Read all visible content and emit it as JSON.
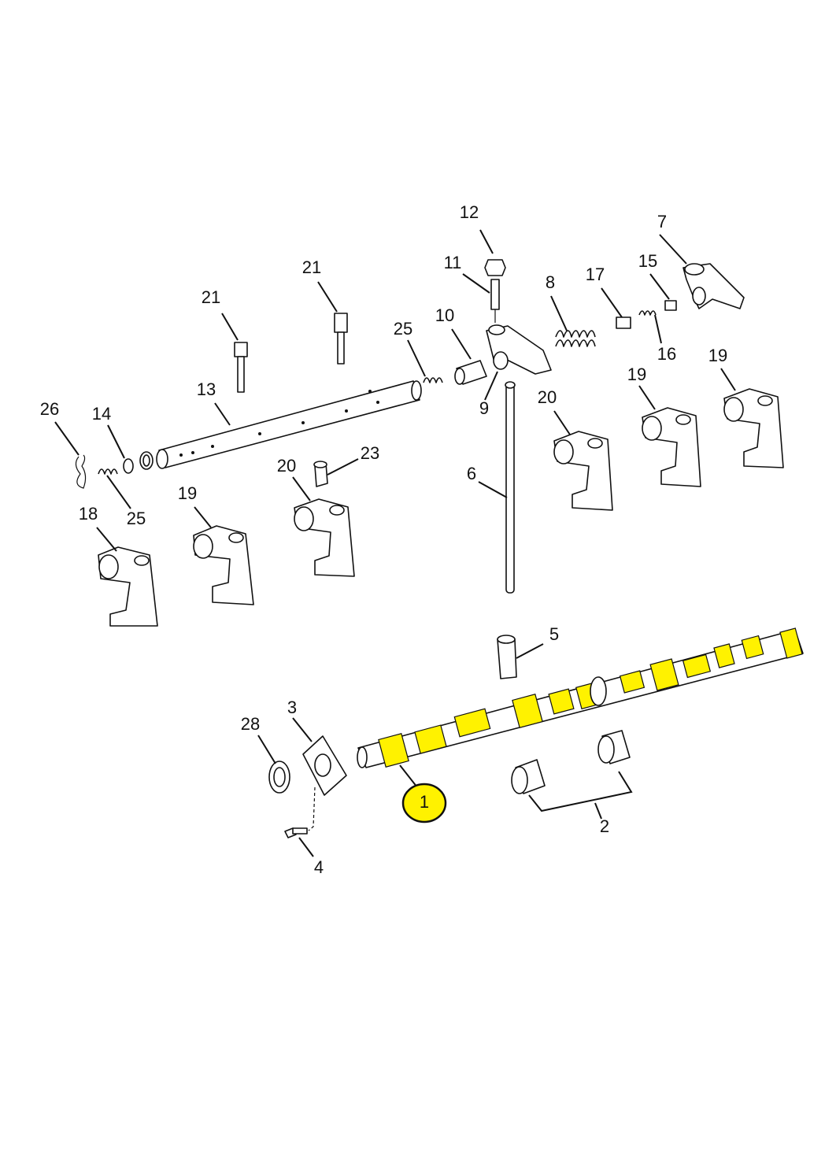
{
  "colors": {
    "highlight": "#fff200",
    "line": "#111111",
    "background": "#ffffff"
  },
  "callouts": {
    "c1": "1",
    "c2": "2",
    "c3": "3",
    "c4": "4",
    "c5": "5",
    "c6": "6",
    "c7": "7",
    "c8": "8",
    "c9": "9",
    "c10": "10",
    "c11": "11",
    "c12": "12",
    "c13": "13",
    "c14": "14",
    "c15": "15",
    "c16": "16",
    "c17": "17",
    "c18": "18",
    "c19a": "19",
    "c19b": "19",
    "c19c": "19",
    "c20a": "20",
    "c20b": "20",
    "c21a": "21",
    "c21b": "21",
    "c23": "23",
    "c25a": "25",
    "c25b": "25",
    "c26": "26",
    "c28": "28"
  },
  "highlighted_part": "1"
}
